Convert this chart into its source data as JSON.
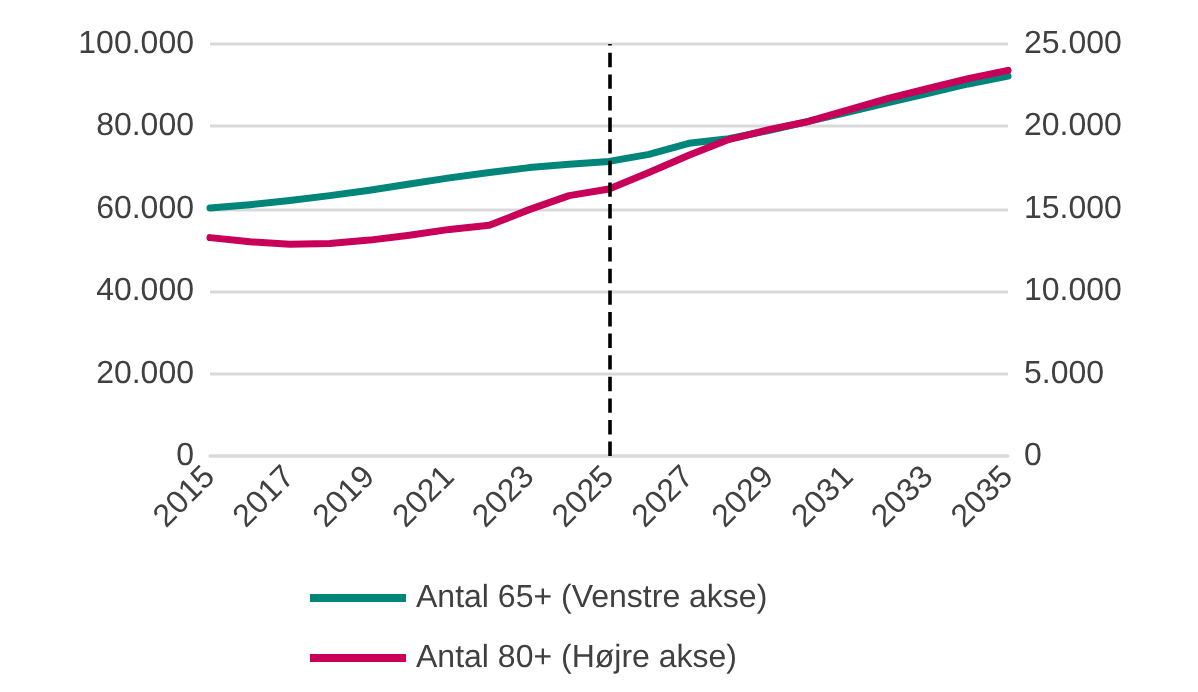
{
  "chart_data": {
    "type": "line",
    "x": [
      2015,
      2016,
      2017,
      2018,
      2019,
      2020,
      2021,
      2022,
      2023,
      2024,
      2025,
      2026,
      2027,
      2028,
      2029,
      2030,
      2031,
      2032,
      2033,
      2034,
      2035
    ],
    "series": [
      {
        "name": "Antal 65+ (Venstre akse)",
        "color": "#00857a",
        "values": [
          60200,
          61000,
          62000,
          63200,
          64500,
          66000,
          67500,
          68800,
          70000,
          70800,
          71500,
          73200,
          75900,
          77000,
          79000,
          81200,
          83500,
          85800,
          88000,
          90300,
          92200
        ]
      },
      {
        "name": "Antal 80+ (Højre akse)",
        "color": "#c8005a",
        "axis": "y2",
        "values": [
          13250,
          13000,
          12850,
          12900,
          13100,
          13400,
          13750,
          14000,
          14950,
          15800,
          16200,
          17200,
          18250,
          19200,
          19800,
          20300,
          21000,
          21700,
          22300,
          22900,
          23400
        ]
      }
    ],
    "xlim": [
      2015,
      2035
    ],
    "xticks": [
      2015,
      2017,
      2019,
      2021,
      2023,
      2025,
      2027,
      2029,
      2031,
      2033,
      2035
    ],
    "ylim": [
      0,
      100000
    ],
    "yticks": [
      {
        "value": 0,
        "label": "0"
      },
      {
        "value": 20000,
        "label": "20.000"
      },
      {
        "value": 40000,
        "label": "40.000"
      },
      {
        "value": 60000,
        "label": "60.000"
      },
      {
        "value": 80000,
        "label": "80.000"
      },
      {
        "value": 100000,
        "label": "100.000"
      }
    ],
    "y2lim": [
      0,
      25000
    ],
    "y2ticks": [
      {
        "value": 0,
        "label": "0"
      },
      {
        "value": 5000,
        "label": "5.000"
      },
      {
        "value": 10000,
        "label": "10.000"
      },
      {
        "value": 15000,
        "label": "15.000"
      },
      {
        "value": 20000,
        "label": "20.000"
      },
      {
        "value": 25000,
        "label": "25.000"
      }
    ],
    "ref_lines": [
      {
        "axis": "x",
        "value": 2025,
        "color": "#000000",
        "line_style": "dashed"
      }
    ],
    "grid": "y",
    "legend": "bottom",
    "marker": "none",
    "line_style": "solid"
  }
}
